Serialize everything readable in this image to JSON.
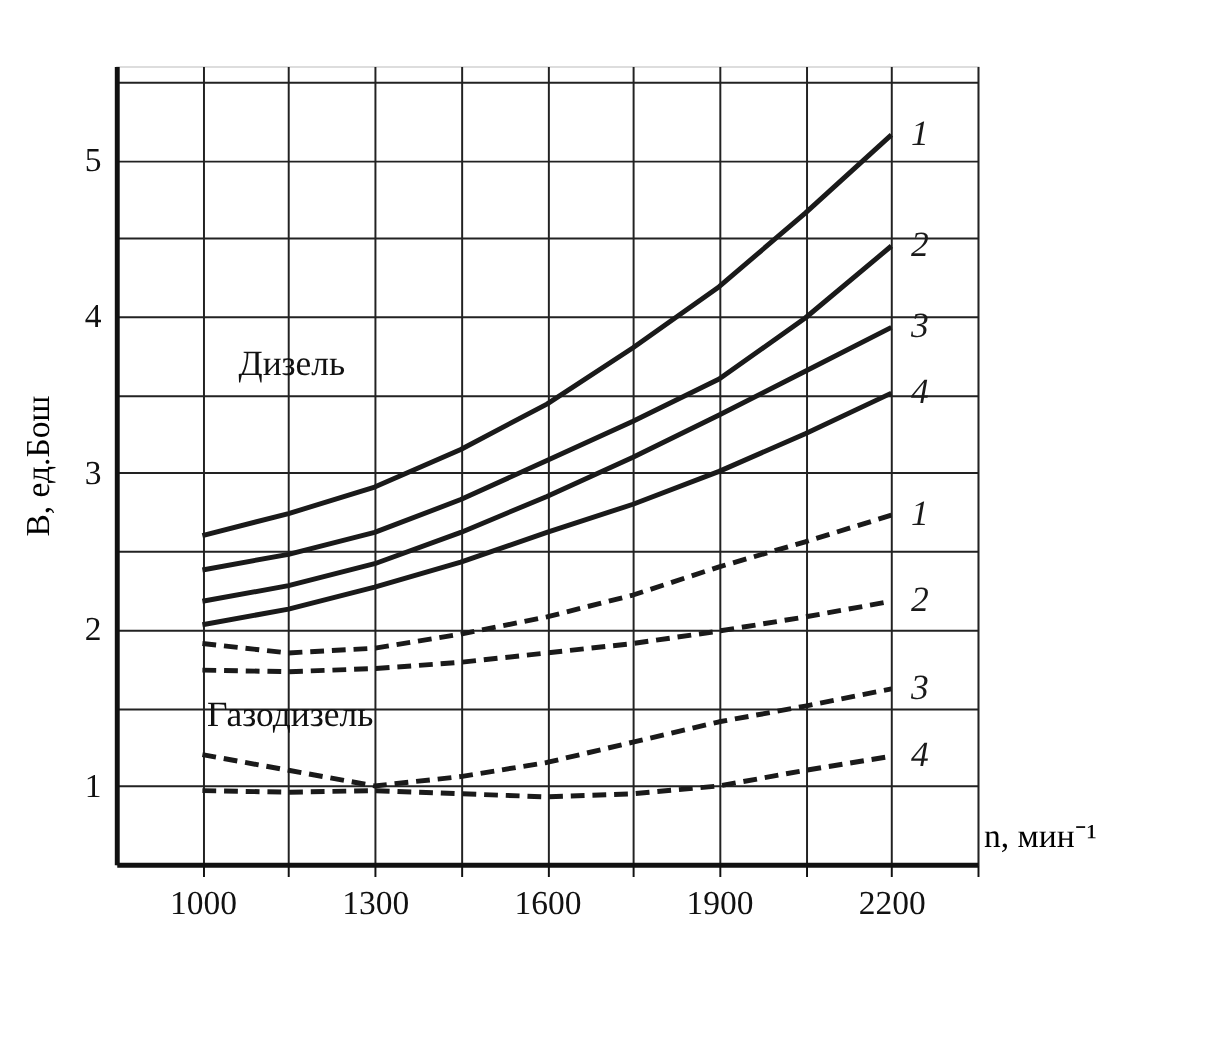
{
  "chart_data": {
    "type": "line",
    "xlabel": "n, мин⁻¹",
    "ylabel": "B, ед.Бош",
    "x": [
      1000,
      1150,
      1300,
      1450,
      1600,
      1750,
      1900,
      2050,
      2200
    ],
    "xlim": [
      850,
      2350
    ],
    "ylim": [
      0.5,
      5.6
    ],
    "xticks": [
      {
        "value": 1000,
        "label": "1000"
      },
      {
        "value": 1150,
        "label": null
      },
      {
        "value": 1300,
        "label": "1300"
      },
      {
        "value": 1450,
        "label": null
      },
      {
        "value": 1600,
        "label": "1600"
      },
      {
        "value": 1750,
        "label": null
      },
      {
        "value": 1900,
        "label": "1900"
      },
      {
        "value": 2050,
        "label": null
      },
      {
        "value": 2200,
        "label": "2200"
      },
      {
        "value": 2350,
        "label": null
      }
    ],
    "yticks": [
      1,
      {
        "value": 1.5,
        "label": null
      },
      2,
      {
        "value": 2.5,
        "label": null
      },
      3,
      {
        "value": 3.5,
        "label": null
      },
      4,
      {
        "value": 4.5,
        "label": null
      },
      5,
      {
        "value": 5.5,
        "label": null
      }
    ],
    "grid": true,
    "marker": "none",
    "series": [
      {
        "name": "1",
        "color": "#1a1a1a",
        "line_style": "solid",
        "values": [
          2.6,
          2.74,
          2.91,
          3.15,
          3.44,
          3.8,
          4.19,
          4.66,
          5.16
        ]
      },
      {
        "name": "2",
        "color": "#1a1a1a",
        "line_style": "solid",
        "values": [
          2.38,
          2.48,
          2.62,
          2.83,
          3.08,
          3.33,
          3.6,
          3.99,
          4.45
        ]
      },
      {
        "name": "3",
        "color": "#1a1a1a",
        "line_style": "solid",
        "values": [
          2.18,
          2.28,
          2.42,
          2.62,
          2.85,
          3.1,
          3.37,
          3.65,
          3.93
        ]
      },
      {
        "name": "4",
        "color": "#1a1a1a",
        "line_style": "solid",
        "values": [
          2.03,
          2.13,
          2.27,
          2.43,
          2.62,
          2.8,
          3.01,
          3.25,
          3.51
        ]
      },
      {
        "name": "1",
        "color": "#1a1a1a",
        "line_style": "dashed",
        "values": [
          1.91,
          1.85,
          1.88,
          1.97,
          2.08,
          2.22,
          2.4,
          2.56,
          2.73
        ]
      },
      {
        "name": "2",
        "color": "#1a1a1a",
        "line_style": "dashed",
        "values": [
          1.74,
          1.73,
          1.75,
          1.79,
          1.85,
          1.91,
          1.99,
          2.08,
          2.18
        ]
      },
      {
        "name": "3",
        "color": "#1a1a1a",
        "line_style": "dashed",
        "values": [
          1.2,
          1.1,
          1.0,
          1.06,
          1.15,
          1.28,
          1.41,
          1.51,
          1.62
        ]
      },
      {
        "name": "4",
        "color": "#1a1a1a",
        "line_style": "dashed",
        "values": [
          0.97,
          0.96,
          0.97,
          0.95,
          0.93,
          0.95,
          1.0,
          1.1,
          1.19
        ]
      }
    ],
    "annotations": [
      "Дизель",
      "Газодизель"
    ]
  }
}
